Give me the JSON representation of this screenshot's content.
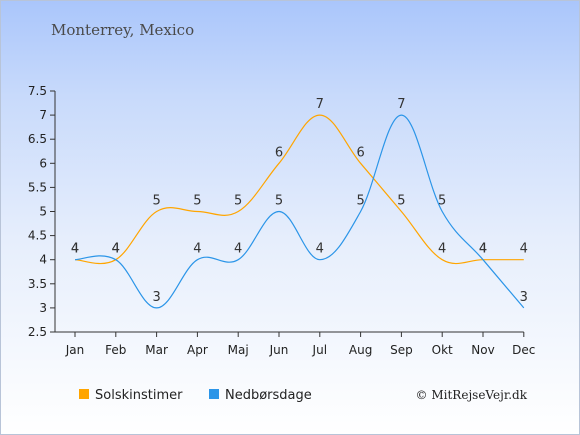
{
  "title": "Monterrey, Mexico",
  "copyright": "© MitRejseVejr.dk",
  "colors": {
    "sun": "#ffa500",
    "rain": "#2b95e8",
    "axis": "#333333"
  },
  "chart_data": {
    "type": "line",
    "categories": [
      "Jan",
      "Feb",
      "Mar",
      "Apr",
      "Maj",
      "Jun",
      "Jul",
      "Aug",
      "Sep",
      "Okt",
      "Nov",
      "Dec"
    ],
    "ylim": [
      2.5,
      7.5
    ],
    "yticks": [
      "2.5",
      "3",
      "3.5",
      "4",
      "4.5",
      "5",
      "5.5",
      "6",
      "6.5",
      "7",
      "7.5"
    ],
    "grid": false,
    "legend_position": "bottom",
    "series": [
      {
        "name": "Solskinstimer",
        "color": "#ffa500",
        "values": [
          4,
          4,
          5,
          5,
          5,
          6,
          7,
          6,
          5,
          4,
          4,
          4
        ]
      },
      {
        "name": "Nedbørsdage",
        "color": "#2b95e8",
        "values": [
          4,
          4,
          3,
          4,
          4,
          5,
          4,
          5,
          7,
          5,
          4,
          3
        ]
      }
    ]
  }
}
